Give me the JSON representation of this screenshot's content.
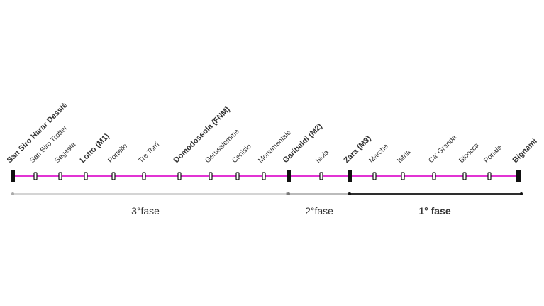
{
  "stations": [
    "San Siro Harar Dessiè",
    "San Siro Trotter",
    "Segesta",
    "Lotto (M1)",
    "Portello",
    "Tre Torri",
    "Domodossola (FNM)",
    "Gerusalemme",
    "Cenisio",
    "Monumentale",
    "Garibaldi (M2)",
    "Isola",
    "Zara (M3)",
    "Marche",
    "Istria",
    "Ca' Granda",
    "Bicocca",
    "Ponale",
    "Bignami"
  ],
  "phases": [
    "3°fase",
    "2°fase",
    "1° fase"
  ]
}
